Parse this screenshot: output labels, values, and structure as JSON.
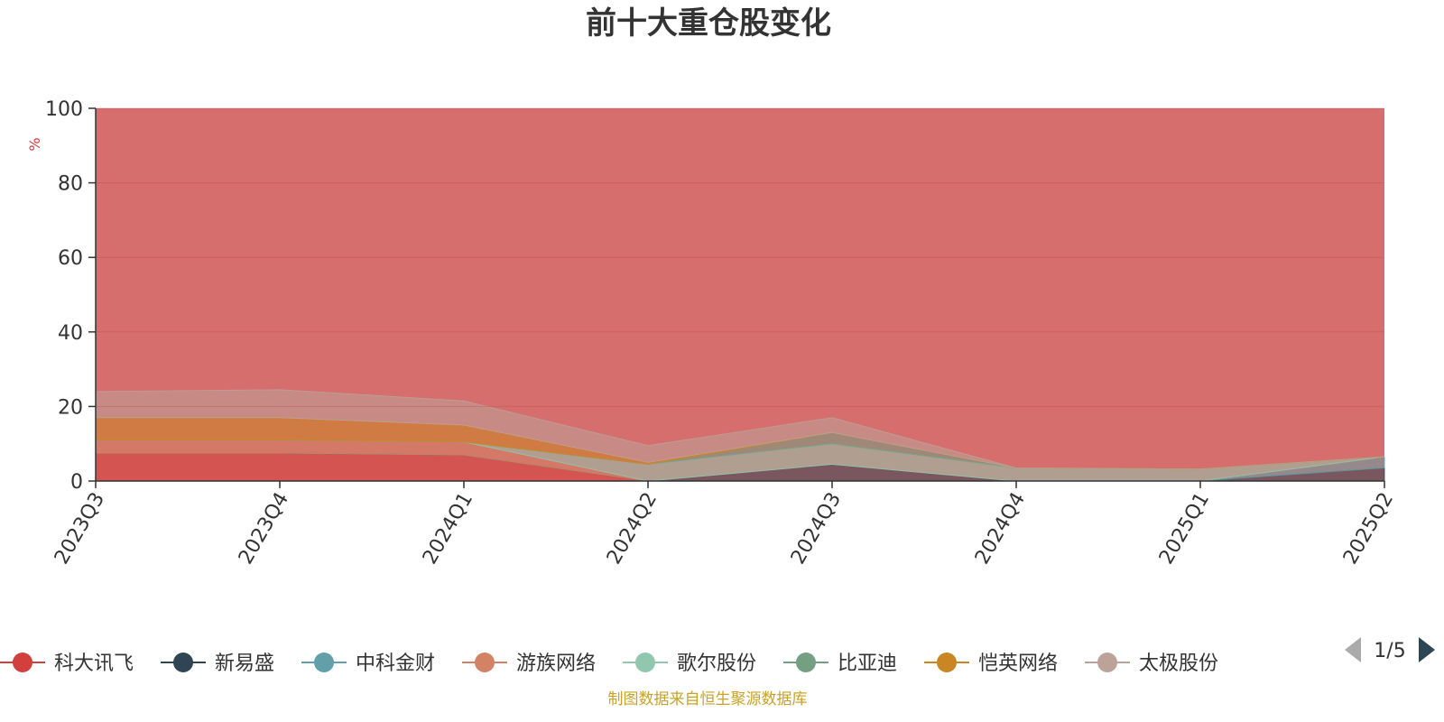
{
  "title": "前十大重仓股变化",
  "source_note": "制图数据来自恒生聚源数据库",
  "legend_page": "1/5",
  "chart_data": {
    "type": "area",
    "stacked": true,
    "title": "前十大重仓股变化",
    "ylabel": "%",
    "ylim": [
      0,
      100
    ],
    "yticks": [
      "0",
      "20",
      "40",
      "60",
      "80",
      "100"
    ],
    "categories": [
      "2023Q3",
      "2023Q4",
      "2024Q1",
      "2024Q2",
      "2024Q3",
      "2024Q4",
      "2025Q1",
      "2025Q2"
    ],
    "grid": true,
    "legend_position": "bottom",
    "series": [
      {
        "name": "科大讯飞",
        "color": "#d1403d",
        "values": [
          7.5,
          7.5,
          7.0,
          0.0,
          0.0,
          0.0,
          0.0,
          0.0
        ]
      },
      {
        "name": "新易盛",
        "color": "#2f4554",
        "values": [
          0.0,
          0.0,
          0.0,
          0.0,
          4.5,
          0.0,
          0.0,
          3.5
        ]
      },
      {
        "name": "中科金财",
        "color": "#61a0a8",
        "values": [
          0.0,
          0.0,
          0.0,
          0.0,
          0.0,
          0.0,
          0.0,
          3.0
        ]
      },
      {
        "name": "游族网络",
        "color": "#d48265",
        "values": [
          3.5,
          3.5,
          3.5,
          0.0,
          0.0,
          0.0,
          0.0,
          0.0
        ]
      },
      {
        "name": "歌尔股份",
        "color": "#91c7ae",
        "values": [
          0.0,
          0.0,
          0.0,
          4.5,
          5.5,
          3.5,
          3.2,
          0.0
        ]
      },
      {
        "name": "比亚迪",
        "color": "#749f83",
        "values": [
          0.0,
          0.0,
          0.0,
          0.0,
          3.0,
          0.0,
          0.0,
          0.0
        ]
      },
      {
        "name": "恺英网络",
        "color": "#ca8622",
        "values": [
          6.0,
          6.0,
          4.5,
          0.5,
          0.0,
          0.0,
          0.0,
          0.0
        ]
      },
      {
        "name": "太极股份",
        "color": "#bda29a",
        "values": [
          7.0,
          7.5,
          6.5,
          4.5,
          4.0,
          0.0,
          0.0,
          0.0
        ]
      }
    ]
  }
}
